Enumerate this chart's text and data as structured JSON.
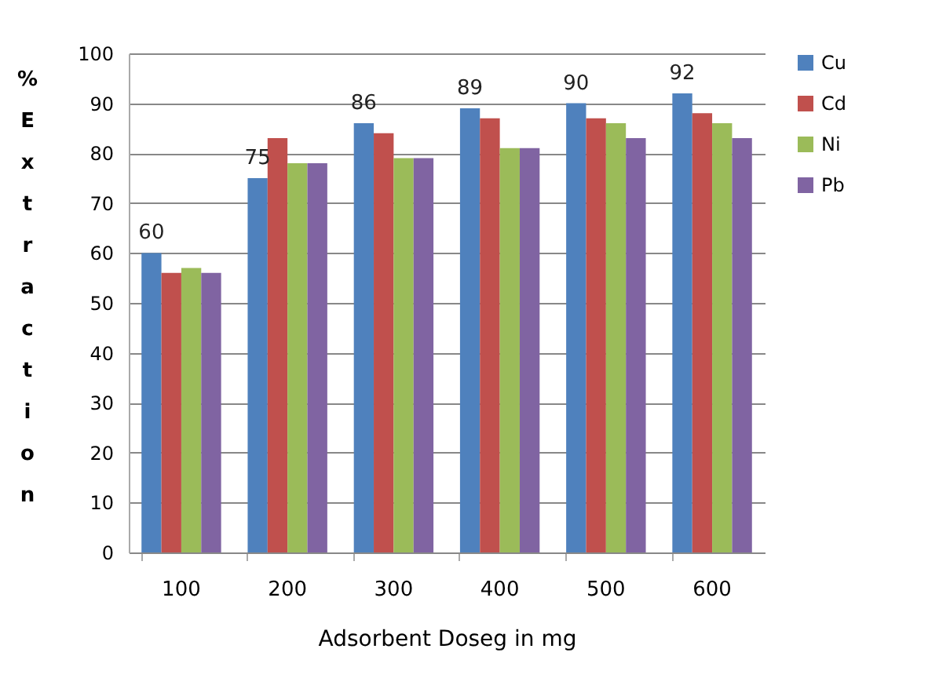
{
  "chart_data": {
    "type": "bar",
    "xlabel": "Adsorbent Doseg in mg",
    "ylabel": "% Extraction",
    "categories": [
      "100",
      "200",
      "300",
      "400",
      "500",
      "600"
    ],
    "series": [
      {
        "name": "Cu",
        "color": "#4f81bd",
        "values": [
          60,
          75,
          86,
          89,
          90,
          92
        ],
        "value_labels": [
          "60",
          "75",
          "86",
          "89",
          "90",
          "92"
        ]
      },
      {
        "name": "Cd",
        "color": "#c0504d",
        "values": [
          56,
          83,
          84,
          87,
          87,
          88
        ]
      },
      {
        "name": "Ni",
        "color": "#9bbb59",
        "values": [
          57,
          78,
          79,
          81,
          86,
          86
        ]
      },
      {
        "name": "Pb",
        "color": "#8064a2",
        "values": [
          56,
          78,
          79,
          81,
          83,
          83
        ]
      }
    ],
    "ylim": [
      0,
      100
    ],
    "yticks": [
      0,
      10,
      20,
      30,
      40,
      50,
      60,
      70,
      80,
      90,
      100
    ],
    "grid": "y",
    "legend": "right"
  }
}
